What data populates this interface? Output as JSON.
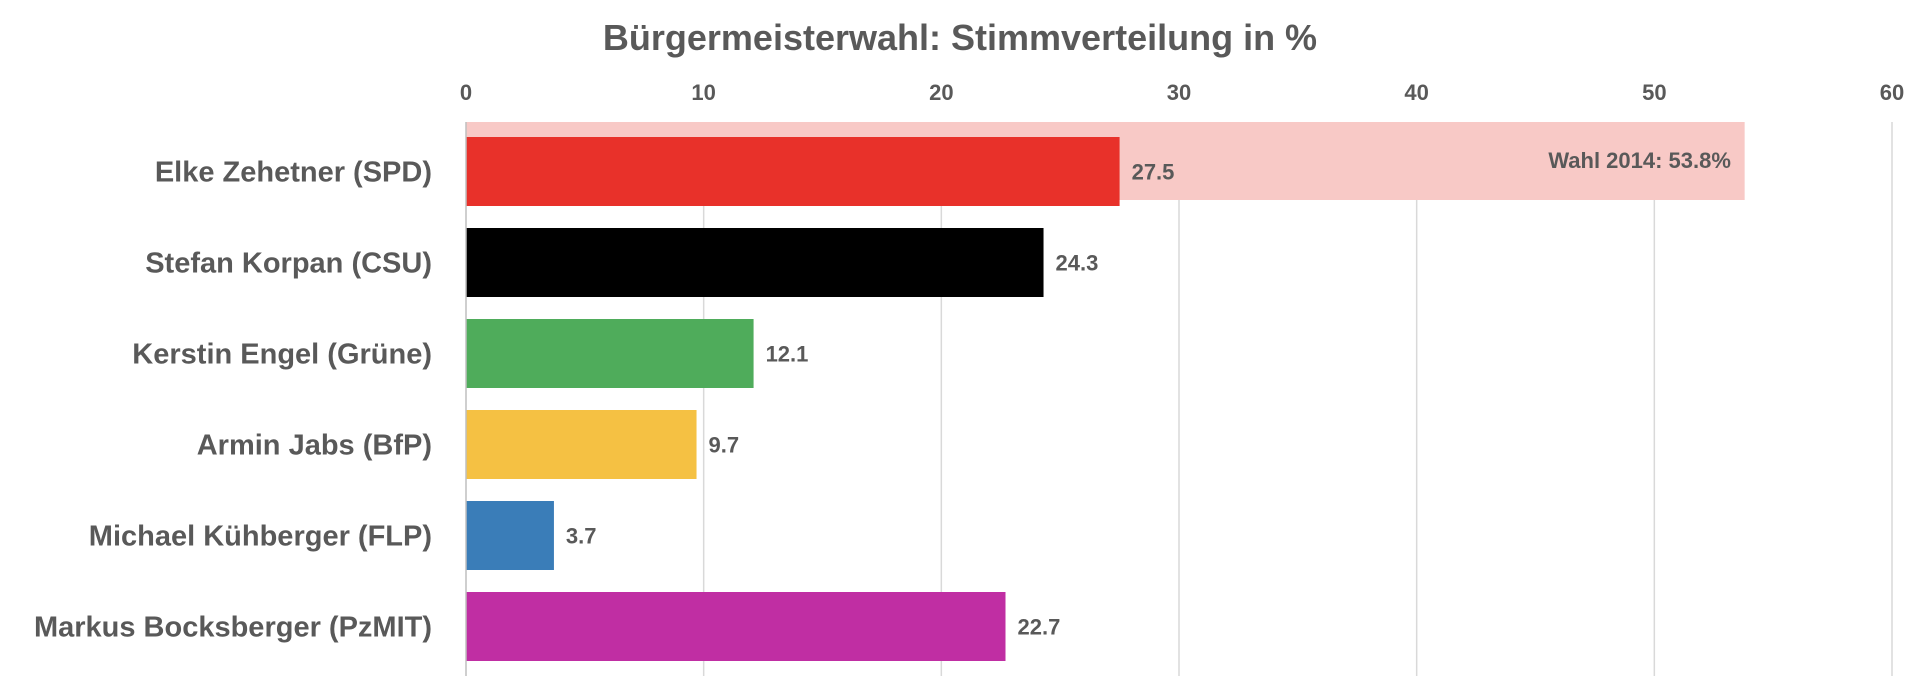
{
  "chart_data": {
    "type": "bar",
    "orientation": "horizontal",
    "title": "Bürgermeisterwahl: Stimmverteilung in %",
    "xlabel": "",
    "ylabel": "",
    "xlim": [
      0,
      60
    ],
    "ticks": [
      0,
      10,
      20,
      30,
      40,
      50,
      60
    ],
    "grid": true,
    "axis_position": "top",
    "categories": [
      "Elke Zehetner (SPD)",
      "Stefan Korpan (CSU)",
      "Kerstin Engel (Grüne)",
      "Armin Jabs (BfP)",
      "Michael Kühberger (FLP)",
      "Markus Bocksberger (PzMIT)"
    ],
    "values": [
      27.5,
      24.3,
      12.1,
      9.7,
      3.7,
      22.7
    ],
    "value_labels": [
      "27.5",
      "24.3",
      "12.1",
      "9.7",
      "3.7",
      "22.7"
    ],
    "colors": [
      "#e8312a",
      "#000000",
      "#4fac5b",
      "#f5c143",
      "#3a7db8",
      "#c02ea3"
    ],
    "reference_bar": {
      "category": "Elke Zehetner (SPD)",
      "value": 53.8,
      "label": "Wahl 2014: 53.8%",
      "color": "#f8c9c6"
    }
  }
}
